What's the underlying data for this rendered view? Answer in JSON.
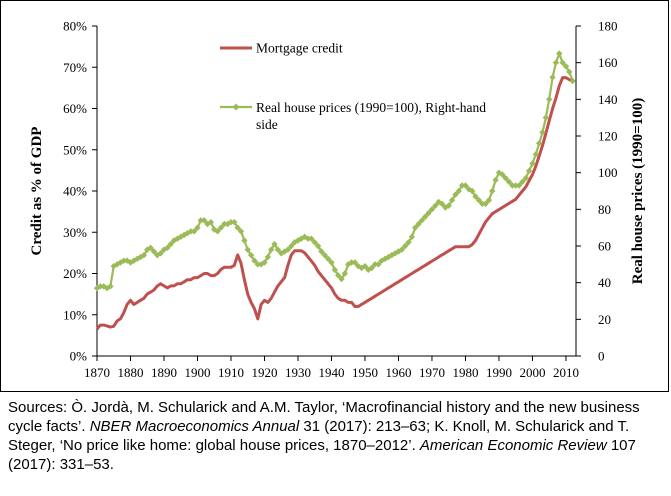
{
  "chart_data": {
    "type": "line",
    "title": "",
    "xlabel": "",
    "ylabel_left": "Credit as % of GDP",
    "ylabel_right": "Real house prices (1990=100)",
    "xlim": [
      1870,
      2013
    ],
    "ylim_left": [
      0,
      80
    ],
    "ylim_right": [
      0,
      180
    ],
    "x_ticks": [
      "1870",
      "1880",
      "1890",
      "1900",
      "1910",
      "1920",
      "1930",
      "1940",
      "1950",
      "1960",
      "1970",
      "1980",
      "1990",
      "2000",
      "2010"
    ],
    "y_ticks_left": [
      "0%",
      "10%",
      "20%",
      "30%",
      "40%",
      "50%",
      "60%",
      "70%",
      "80%"
    ],
    "y_ticks_right": [
      "0",
      "20",
      "40",
      "60",
      "80",
      "100",
      "120",
      "140",
      "160",
      "180"
    ],
    "grid": false,
    "legend_position": "top-center",
    "series": [
      {
        "name": "Mortgage credit",
        "axis": "left",
        "color": "#c0504d",
        "marker": "none",
        "points": [
          [
            1870,
            6.5
          ],
          [
            1871,
            7.5
          ],
          [
            1872,
            7.5
          ],
          [
            1873,
            7.3
          ],
          [
            1874,
            7.0
          ],
          [
            1875,
            7.2
          ],
          [
            1876,
            8.5
          ],
          [
            1877,
            9.0
          ],
          [
            1878,
            10.5
          ],
          [
            1879,
            12.5
          ],
          [
            1880,
            13.5
          ],
          [
            1881,
            12.5
          ],
          [
            1882,
            13.0
          ],
          [
            1883,
            13.5
          ],
          [
            1884,
            14.0
          ],
          [
            1885,
            15.0
          ],
          [
            1886,
            15.5
          ],
          [
            1887,
            16.0
          ],
          [
            1888,
            17.0
          ],
          [
            1889,
            17.5
          ],
          [
            1890,
            17.0
          ],
          [
            1891,
            16.5
          ],
          [
            1892,
            17.0
          ],
          [
            1893,
            17.0
          ],
          [
            1894,
            17.5
          ],
          [
            1895,
            17.5
          ],
          [
            1896,
            18.0
          ],
          [
            1897,
            18.5
          ],
          [
            1898,
            18.5
          ],
          [
            1899,
            19.0
          ],
          [
            1900,
            19.0
          ],
          [
            1901,
            19.5
          ],
          [
            1902,
            20.0
          ],
          [
            1903,
            20.0
          ],
          [
            1904,
            19.5
          ],
          [
            1905,
            19.5
          ],
          [
            1906,
            20.0
          ],
          [
            1907,
            21.0
          ],
          [
            1908,
            21.5
          ],
          [
            1909,
            21.5
          ],
          [
            1910,
            21.5
          ],
          [
            1911,
            22.0
          ],
          [
            1912,
            24.5
          ],
          [
            1913,
            22.5
          ],
          [
            1914,
            18.5
          ],
          [
            1915,
            15.0
          ],
          [
            1916,
            13.0
          ],
          [
            1917,
            11.5
          ],
          [
            1918,
            9.0
          ],
          [
            1919,
            12.5
          ],
          [
            1920,
            13.5
          ],
          [
            1921,
            13.0
          ],
          [
            1922,
            14.0
          ],
          [
            1923,
            15.5
          ],
          [
            1924,
            17.0
          ],
          [
            1925,
            18.0
          ],
          [
            1926,
            19.0
          ],
          [
            1927,
            22.0
          ],
          [
            1928,
            24.5
          ],
          [
            1929,
            25.5
          ],
          [
            1930,
            25.5
          ],
          [
            1931,
            25.5
          ],
          [
            1932,
            25.0
          ],
          [
            1933,
            24.0
          ],
          [
            1934,
            23.0
          ],
          [
            1935,
            22.0
          ],
          [
            1936,
            20.5
          ],
          [
            1937,
            19.5
          ],
          [
            1938,
            18.5
          ],
          [
            1939,
            17.5
          ],
          [
            1940,
            16.5
          ],
          [
            1941,
            15.0
          ],
          [
            1942,
            14.0
          ],
          [
            1943,
            13.5
          ],
          [
            1944,
            13.5
          ],
          [
            1945,
            13.0
          ],
          [
            1946,
            13.0
          ],
          [
            1947,
            12.0
          ],
          [
            1948,
            12.0
          ],
          [
            1949,
            12.5
          ],
          [
            1950,
            13.0
          ],
          [
            1951,
            13.5
          ],
          [
            1952,
            14.0
          ],
          [
            1953,
            14.5
          ],
          [
            1954,
            15.0
          ],
          [
            1955,
            15.5
          ],
          [
            1956,
            16.0
          ],
          [
            1957,
            16.5
          ],
          [
            1958,
            17.0
          ],
          [
            1959,
            17.5
          ],
          [
            1960,
            18.0
          ],
          [
            1961,
            18.5
          ],
          [
            1962,
            19.0
          ],
          [
            1963,
            19.5
          ],
          [
            1964,
            20.0
          ],
          [
            1965,
            20.5
          ],
          [
            1966,
            21.0
          ],
          [
            1967,
            21.5
          ],
          [
            1968,
            22.0
          ],
          [
            1969,
            22.5
          ],
          [
            1970,
            23.0
          ],
          [
            1971,
            23.5
          ],
          [
            1972,
            24.0
          ],
          [
            1973,
            24.5
          ],
          [
            1974,
            25.0
          ],
          [
            1975,
            25.5
          ],
          [
            1976,
            26.0
          ],
          [
            1977,
            26.5
          ],
          [
            1978,
            26.5
          ],
          [
            1979,
            26.5
          ],
          [
            1980,
            26.5
          ],
          [
            1981,
            26.5
          ],
          [
            1982,
            27.0
          ],
          [
            1983,
            28.0
          ],
          [
            1984,
            29.5
          ],
          [
            1985,
            31.0
          ],
          [
            1986,
            32.5
          ],
          [
            1987,
            33.5
          ],
          [
            1988,
            34.5
          ],
          [
            1989,
            35.0
          ],
          [
            1990,
            35.5
          ],
          [
            1991,
            36.0
          ],
          [
            1992,
            36.5
          ],
          [
            1993,
            37.0
          ],
          [
            1994,
            37.5
          ],
          [
            1995,
            38.0
          ],
          [
            1996,
            39.0
          ],
          [
            1997,
            40.0
          ],
          [
            1998,
            41.0
          ],
          [
            1999,
            42.5
          ],
          [
            2000,
            44.0
          ],
          [
            2001,
            46.0
          ],
          [
            2002,
            48.5
          ],
          [
            2003,
            51.0
          ],
          [
            2004,
            54.0
          ],
          [
            2005,
            57.0
          ],
          [
            2006,
            60.0
          ],
          [
            2007,
            62.5
          ],
          [
            2008,
            65.5
          ],
          [
            2009,
            67.5
          ],
          [
            2010,
            67.5
          ],
          [
            2011,
            67.0
          ],
          [
            2012,
            66.5
          ]
        ]
      },
      {
        "name": "Real house prices (1990=100), Right-hand side",
        "axis": "right",
        "color": "#9bbb59",
        "marker": "diamond",
        "points": [
          [
            1870,
            37
          ],
          [
            1871,
            38
          ],
          [
            1872,
            38
          ],
          [
            1873,
            37
          ],
          [
            1874,
            38
          ],
          [
            1875,
            49
          ],
          [
            1876,
            50
          ],
          [
            1877,
            51
          ],
          [
            1878,
            52
          ],
          [
            1879,
            52
          ],
          [
            1880,
            51
          ],
          [
            1881,
            52
          ],
          [
            1882,
            53
          ],
          [
            1883,
            54
          ],
          [
            1884,
            55
          ],
          [
            1885,
            58
          ],
          [
            1886,
            59
          ],
          [
            1887,
            57
          ],
          [
            1888,
            55
          ],
          [
            1889,
            56
          ],
          [
            1890,
            58
          ],
          [
            1891,
            59
          ],
          [
            1892,
            61
          ],
          [
            1893,
            63
          ],
          [
            1894,
            64
          ],
          [
            1895,
            65
          ],
          [
            1896,
            66
          ],
          [
            1897,
            67
          ],
          [
            1898,
            68
          ],
          [
            1899,
            68
          ],
          [
            1900,
            70
          ],
          [
            1901,
            74
          ],
          [
            1902,
            74
          ],
          [
            1903,
            72
          ],
          [
            1904,
            73
          ],
          [
            1905,
            69
          ],
          [
            1906,
            68
          ],
          [
            1907,
            70
          ],
          [
            1908,
            72
          ],
          [
            1909,
            72
          ],
          [
            1910,
            73
          ],
          [
            1911,
            73
          ],
          [
            1912,
            70
          ],
          [
            1913,
            68
          ],
          [
            1914,
            63
          ],
          [
            1915,
            58
          ],
          [
            1916,
            55
          ],
          [
            1917,
            52
          ],
          [
            1918,
            50
          ],
          [
            1919,
            50
          ],
          [
            1920,
            51
          ],
          [
            1921,
            54
          ],
          [
            1922,
            58
          ],
          [
            1923,
            61
          ],
          [
            1924,
            58
          ],
          [
            1925,
            56
          ],
          [
            1926,
            57
          ],
          [
            1927,
            58
          ],
          [
            1928,
            60
          ],
          [
            1929,
            62
          ],
          [
            1930,
            63
          ],
          [
            1931,
            64
          ],
          [
            1932,
            65
          ],
          [
            1933,
            64
          ],
          [
            1934,
            64
          ],
          [
            1935,
            62
          ],
          [
            1936,
            60
          ],
          [
            1937,
            57
          ],
          [
            1938,
            55
          ],
          [
            1939,
            53
          ],
          [
            1940,
            51
          ],
          [
            1941,
            47
          ],
          [
            1942,
            44
          ],
          [
            1943,
            42
          ],
          [
            1944,
            45
          ],
          [
            1945,
            50
          ],
          [
            1946,
            51
          ],
          [
            1947,
            51
          ],
          [
            1948,
            49
          ],
          [
            1949,
            48
          ],
          [
            1950,
            49
          ],
          [
            1951,
            47
          ],
          [
            1952,
            48
          ],
          [
            1953,
            50
          ],
          [
            1954,
            50
          ],
          [
            1955,
            52
          ],
          [
            1956,
            53
          ],
          [
            1957,
            54
          ],
          [
            1958,
            55
          ],
          [
            1959,
            56
          ],
          [
            1960,
            57
          ],
          [
            1961,
            58
          ],
          [
            1962,
            60
          ],
          [
            1963,
            62
          ],
          [
            1964,
            65
          ],
          [
            1965,
            70
          ],
          [
            1966,
            72
          ],
          [
            1967,
            74
          ],
          [
            1968,
            76
          ],
          [
            1969,
            78
          ],
          [
            1970,
            80
          ],
          [
            1971,
            82
          ],
          [
            1972,
            84
          ],
          [
            1973,
            83
          ],
          [
            1974,
            81
          ],
          [
            1975,
            82
          ],
          [
            1976,
            85
          ],
          [
            1977,
            88
          ],
          [
            1978,
            90
          ],
          [
            1979,
            93
          ],
          [
            1980,
            93
          ],
          [
            1981,
            91
          ],
          [
            1982,
            90
          ],
          [
            1983,
            87
          ],
          [
            1984,
            85
          ],
          [
            1985,
            83
          ],
          [
            1986,
            83
          ],
          [
            1987,
            85
          ],
          [
            1988,
            90
          ],
          [
            1989,
            96
          ],
          [
            1990,
            100
          ],
          [
            1991,
            99
          ],
          [
            1992,
            97
          ],
          [
            1993,
            95
          ],
          [
            1994,
            93
          ],
          [
            1995,
            93
          ],
          [
            1996,
            93
          ],
          [
            1997,
            95
          ],
          [
            1998,
            97
          ],
          [
            1999,
            101
          ],
          [
            2000,
            105
          ],
          [
            2001,
            110
          ],
          [
            2002,
            116
          ],
          [
            2003,
            122
          ],
          [
            2004,
            130
          ],
          [
            2005,
            140
          ],
          [
            2006,
            152
          ],
          [
            2007,
            160
          ],
          [
            2008,
            165
          ],
          [
            2009,
            160
          ],
          [
            2010,
            158
          ],
          [
            2011,
            155
          ],
          [
            2012,
            150
          ]
        ]
      }
    ]
  },
  "source_note": {
    "prefix": "Sources: Ò. Jordà, M. Schularick and A.M. Taylor, ‘Macrofinancial history and the new business cycle facts’. ",
    "journal1": "NBER Macroeconomics Annual",
    "mid1": " 31 (2017): 213–63; K. Knoll, M. Schularick and T. Steger, ‘No price like home: global house prices, 1870–2012’. ",
    "journal2": "American Economic Review",
    "suffix": " 107 (2017): 331–53."
  }
}
